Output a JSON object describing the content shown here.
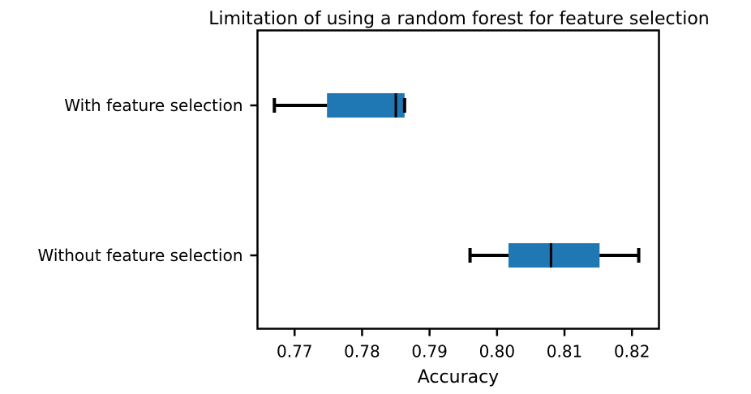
{
  "chart_data": {
    "type": "boxplot",
    "orientation": "horizontal",
    "title": "Limitation of using a random forest for feature selection",
    "xlabel": "Accuracy",
    "ylabel": "",
    "xlim": [
      0.7645,
      0.824
    ],
    "xticks": [
      0.77,
      0.78,
      0.79,
      0.8,
      0.81,
      0.82
    ],
    "xtick_labels": [
      "0.77",
      "0.78",
      "0.79",
      "0.80",
      "0.81",
      "0.82"
    ],
    "categories": [
      "With feature selection",
      "Without feature selection"
    ],
    "series": [
      {
        "name": "With feature selection",
        "whisker_low": 0.767,
        "q1": 0.7748,
        "median": 0.785,
        "q3": 0.7863,
        "whisker_high": 0.7863
      },
      {
        "name": "Without feature selection",
        "whisker_low": 0.796,
        "q1": 0.8017,
        "median": 0.808,
        "q3": 0.8152,
        "whisker_high": 0.821
      }
    ],
    "box_color": "#1f77b4",
    "line_color": "#000000",
    "grid": false
  }
}
